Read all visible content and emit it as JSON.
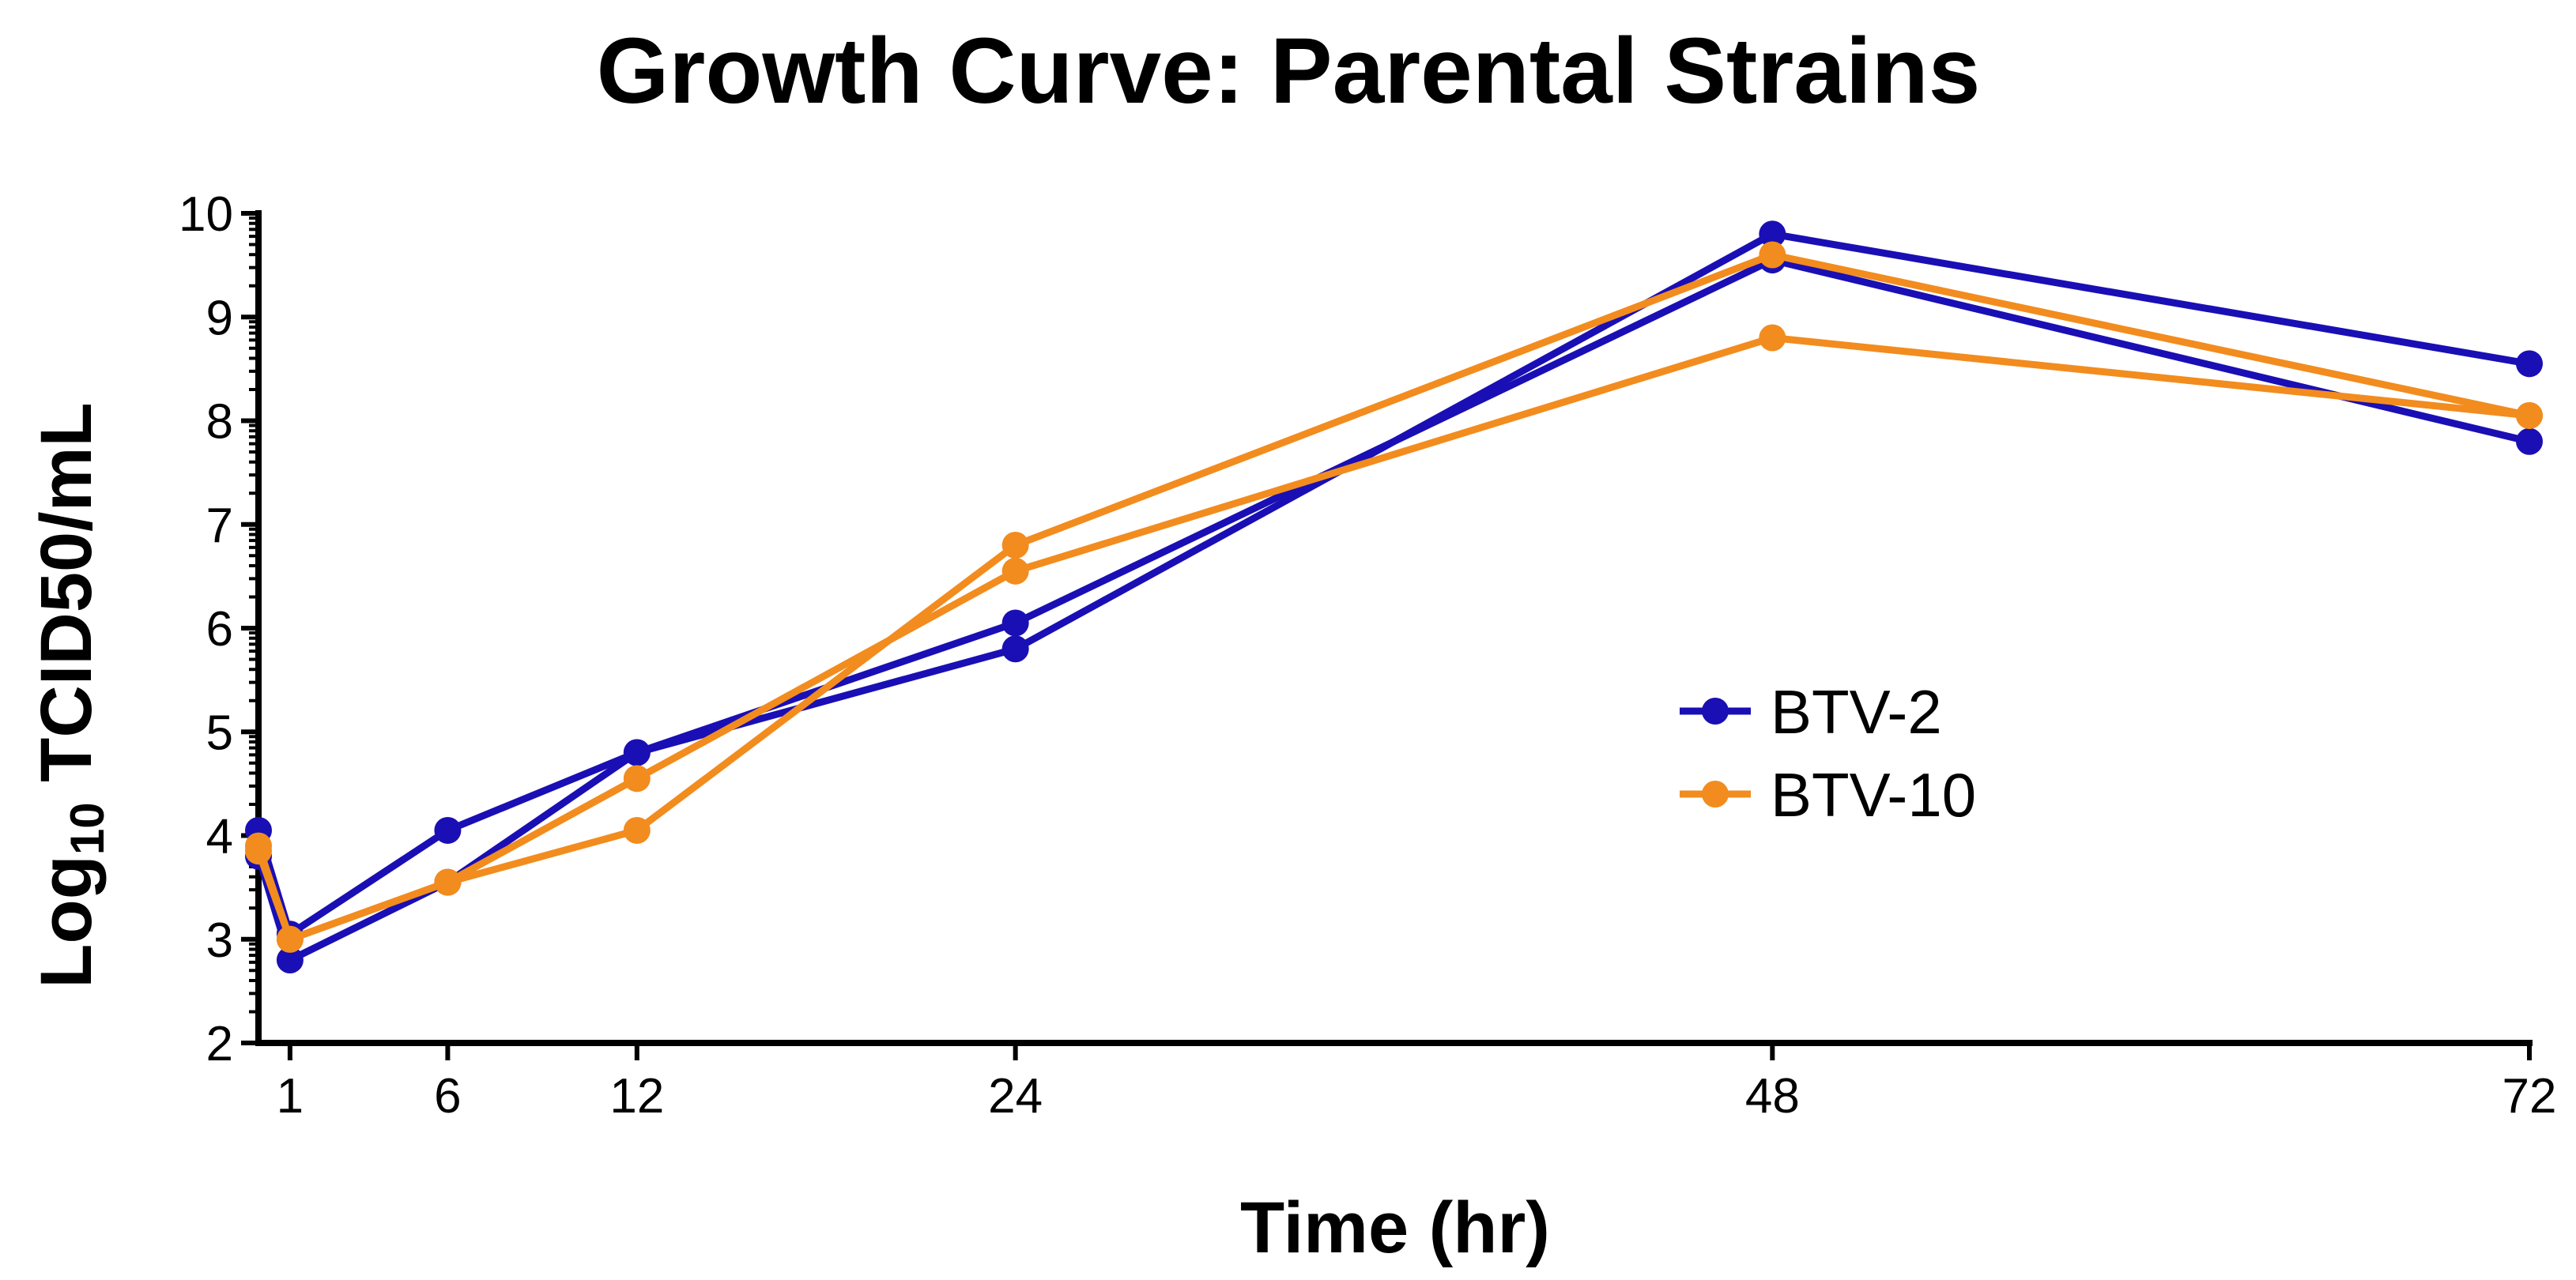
{
  "chart_data": {
    "type": "line",
    "title": "Growth Curve: Parental Strains",
    "xlabel": "Time (hr)",
    "ylabel_main": "Log",
    "ylabel_sub": "10",
    "ylabel_rest": " TCID50/mL",
    "x_ticks": [
      1,
      6,
      12,
      24,
      48,
      72
    ],
    "y_ticks": [
      2,
      3,
      4,
      5,
      6,
      7,
      8,
      9,
      10
    ],
    "xlim": [
      0,
      72
    ],
    "ylim": [
      2,
      10
    ],
    "legend_position": "right-middle",
    "series": [
      {
        "name": "BTV-2",
        "color": "#1a0fb4",
        "x": [
          0,
          1,
          6,
          12,
          24,
          48,
          72
        ],
        "y": [
          4.05,
          3.05,
          4.05,
          4.8,
          5.8,
          9.8,
          8.55
        ]
      },
      {
        "name": "",
        "color": "#1a0fb4",
        "x": [
          0,
          1,
          6,
          12,
          24,
          48,
          72
        ],
        "y": [
          3.8,
          2.8,
          3.55,
          4.8,
          6.05,
          9.55,
          7.8
        ]
      },
      {
        "name": "BTV-10",
        "color": "#f28c1e",
        "x": [
          0,
          1,
          6,
          12,
          24,
          48,
          72
        ],
        "y": [
          3.9,
          3.0,
          3.55,
          4.05,
          6.8,
          9.6,
          8.05
        ]
      },
      {
        "name": "",
        "color": "#f28c1e",
        "x": [
          0,
          1,
          6,
          12,
          24,
          48,
          72
        ],
        "y": [
          3.85,
          3.0,
          3.55,
          4.55,
          6.55,
          8.8,
          8.05
        ]
      }
    ]
  }
}
